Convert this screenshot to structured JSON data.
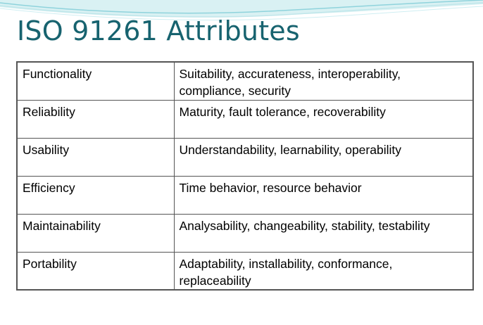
{
  "slide": {
    "title": "ISO 91261 Attributes"
  },
  "table": {
    "rows": [
      {
        "attribute": "Functionality",
        "subattributes": "Suitability, accurateness, interoperability, compliance, security"
      },
      {
        "attribute": "Reliability",
        "subattributes": "Maturity, fault tolerance, recoverability"
      },
      {
        "attribute": "Usability",
        "subattributes": "Understandability, learnability, operability"
      },
      {
        "attribute": "Efficiency",
        "subattributes": "Time behavior, resource behavior"
      },
      {
        "attribute": "Maintainability",
        "subattributes": "Analysability, changeability, stability, testability"
      },
      {
        "attribute": "Portability",
        "subattributes": "Adaptability, installability, conformance, replaceability"
      }
    ]
  },
  "theme": {
    "title_color": "#17636f",
    "wave_colors": [
      "#bfe6ea",
      "#8fd3dc",
      "#d9f1f3"
    ]
  }
}
